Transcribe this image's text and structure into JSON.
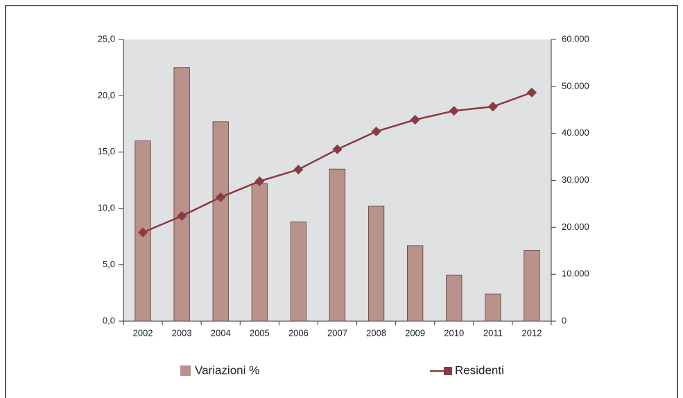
{
  "chart_data": {
    "type": "bar",
    "categories": [
      "2002",
      "2003",
      "2004",
      "2005",
      "2006",
      "2007",
      "2008",
      "2009",
      "2010",
      "2011",
      "2012"
    ],
    "series": [
      {
        "name": "Variazioni %",
        "type": "bar",
        "color": "#b9938b",
        "values": [
          16.0,
          22.5,
          17.7,
          12.2,
          8.8,
          13.5,
          10.2,
          6.7,
          4.1,
          2.4,
          6.3
        ]
      },
      {
        "name": "Residenti",
        "type": "line",
        "axis": "y2",
        "color": "#8b3a42",
        "values": [
          18900,
          22400,
          26400,
          29800,
          32300,
          36600,
          40400,
          42900,
          44800,
          45700,
          48700
        ]
      }
    ],
    "ylim": [
      0,
      25
    ],
    "yticks": [
      {
        "value": 0,
        "label": "0,0"
      },
      {
        "value": 5,
        "label": "5,0"
      },
      {
        "value": 10,
        "label": "10,0"
      },
      {
        "value": 15,
        "label": "15,0"
      },
      {
        "value": 20,
        "label": "20,0"
      },
      {
        "value": 25,
        "label": "25,0"
      }
    ],
    "y2lim": [
      0,
      60000
    ],
    "y2ticks": [
      0,
      {
        "value": 10000,
        "label": "10.000"
      },
      {
        "value": 20000,
        "label": "20.000"
      },
      {
        "value": 30000,
        "label": "30.000"
      },
      {
        "value": 40000,
        "label": "40.000"
      },
      {
        "value": 50000,
        "label": "50.000"
      },
      {
        "value": 60000,
        "label": "60.000"
      }
    ],
    "grid": false,
    "legend": "bottom"
  }
}
